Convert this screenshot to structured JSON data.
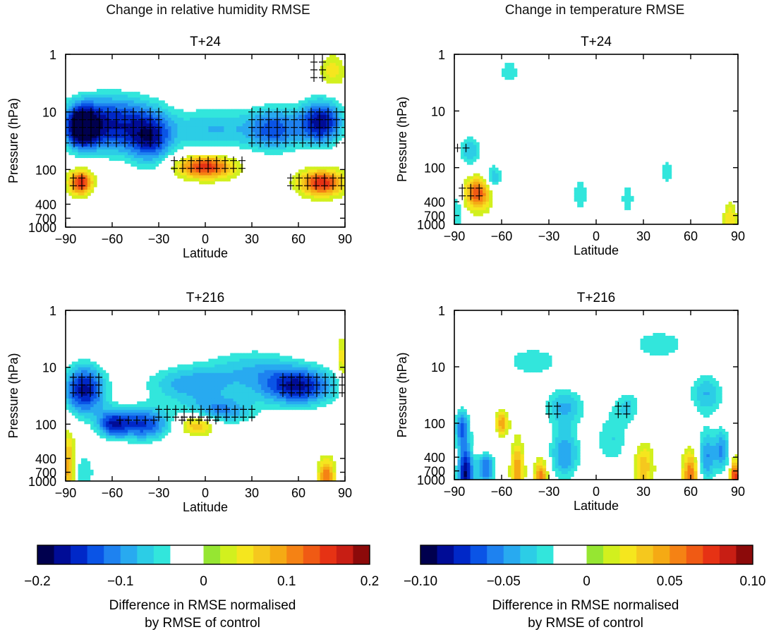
{
  "figure": {
    "left_column_title": "Change in relative humidity RMSE",
    "right_column_title": "Change in temperature RMSE"
  },
  "chart_data": [
    {
      "type": "heatmap",
      "id": "rh-t24",
      "title": "T+24",
      "xlabel": "Latitude",
      "ylabel": "Pressure (hPa)",
      "xlim": [
        -90,
        90
      ],
      "xticks": [
        -90,
        -60,
        -30,
        0,
        30,
        60,
        90
      ],
      "xtick_labels": [
        "−90",
        "−60",
        "−30",
        "0",
        "30",
        "60",
        "90"
      ],
      "yticks": [
        1,
        10,
        100,
        400,
        700,
        1000
      ],
      "yscale": "log-pressure",
      "scale_max": 0.2,
      "features": [
        {
          "lat": -62,
          "p": 20,
          "v": -0.14,
          "wlat": 28,
          "wp": 0.45
        },
        {
          "lat": -80,
          "p": 18,
          "v": -0.17,
          "wlat": 10,
          "wp": 0.35
        },
        {
          "lat": -35,
          "p": 30,
          "v": -0.12,
          "wlat": 14,
          "wp": 0.45
        },
        {
          "lat": 5,
          "p": 20,
          "v": -0.08,
          "wlat": 30,
          "wp": 0.4
        },
        {
          "lat": 45,
          "p": 20,
          "v": -0.12,
          "wlat": 18,
          "wp": 0.4
        },
        {
          "lat": 75,
          "p": 15,
          "v": -0.17,
          "wlat": 14,
          "wp": 0.4
        },
        {
          "lat": -60,
          "p": 8,
          "v": -0.05,
          "wlat": 30,
          "wp": 0.35
        },
        {
          "lat": 0,
          "p": 90,
          "v": 0.16,
          "wlat": 18,
          "wp": 0.2
        },
        {
          "lat": -80,
          "p": 170,
          "v": 0.17,
          "wlat": 8,
          "wp": 0.22
        },
        {
          "lat": 75,
          "p": 170,
          "v": 0.16,
          "wlat": 14,
          "wp": 0.22
        },
        {
          "lat": 82,
          "p": 2,
          "v": 0.05,
          "wlat": 8,
          "wp": 0.3
        },
        {
          "lat": -50,
          "p": 250,
          "v": -0.03,
          "wlat": 35,
          "wp": 0.35
        }
      ],
      "hatches": [
        {
          "lat": [
            -90,
            -30
          ],
          "p": [
            10,
            45
          ]
        },
        {
          "lat": [
            30,
            90
          ],
          "p": [
            10,
            45
          ]
        },
        {
          "lat": [
            -20,
            25
          ],
          "p": [
            70,
            110
          ]
        },
        {
          "lat": [
            -85,
            -75
          ],
          "p": [
            140,
            220
          ]
        },
        {
          "lat": [
            55,
            90
          ],
          "p": [
            140,
            220
          ]
        },
        {
          "lat": [
            70,
            80
          ],
          "p": [
            1,
            3
          ]
        }
      ]
    },
    {
      "type": "heatmap",
      "id": "t-t24",
      "title": "T+24",
      "xlabel": "Latitude",
      "ylabel": "Pressure (hPa)",
      "xlim": [
        -90,
        90
      ],
      "xticks": [
        -90,
        -60,
        -30,
        0,
        30,
        60,
        90
      ],
      "xtick_labels": [
        "−90",
        "−60",
        "−30",
        "0",
        "30",
        "60",
        "90"
      ],
      "yticks": [
        1,
        10,
        100,
        400,
        700,
        1000
      ],
      "yscale": "log-pressure",
      "scale_max": 0.1,
      "features": [
        {
          "lat": -75,
          "p": 280,
          "v": 0.07,
          "wlat": 8,
          "wp": 0.28
        },
        {
          "lat": -80,
          "p": 50,
          "v": -0.04,
          "wlat": 8,
          "wp": 0.3
        },
        {
          "lat": -65,
          "p": 150,
          "v": -0.04,
          "wlat": 6,
          "wp": 0.25
        },
        {
          "lat": -10,
          "p": 300,
          "v": -0.03,
          "wlat": 6,
          "wp": 0.35
        },
        {
          "lat": 20,
          "p": 350,
          "v": -0.03,
          "wlat": 5,
          "wp": 0.3
        },
        {
          "lat": 45,
          "p": 120,
          "v": -0.03,
          "wlat": 6,
          "wp": 0.25
        },
        {
          "lat": 85,
          "p": 800,
          "v": 0.03,
          "wlat": 4,
          "wp": 0.3
        },
        {
          "lat": -88,
          "p": 600,
          "v": -0.03,
          "wlat": 3,
          "wp": 0.5
        },
        {
          "lat": -55,
          "p": 2,
          "v": -0.025,
          "wlat": 10,
          "wp": 0.3
        }
      ],
      "hatches": [
        {
          "lat": [
            -85,
            -72
          ],
          "p": [
            230,
            320
          ]
        },
        {
          "lat": [
            -88,
            -78
          ],
          "p": [
            45,
            60
          ]
        }
      ]
    },
    {
      "type": "heatmap",
      "id": "rh-t216",
      "title": "T+216",
      "xlabel": "Latitude",
      "ylabel": "Pressure (hPa)",
      "xlim": [
        -90,
        90
      ],
      "xticks": [
        -90,
        -60,
        -30,
        0,
        30,
        60,
        90
      ],
      "xtick_labels": [
        "−90",
        "−60",
        "−30",
        "0",
        "30",
        "60",
        "90"
      ],
      "yticks": [
        1,
        10,
        100,
        400,
        700,
        1000
      ],
      "yscale": "log-pressure",
      "scale_max": 0.2,
      "features": [
        {
          "lat": -78,
          "p": 25,
          "v": -0.17,
          "wlat": 14,
          "wp": 0.45
        },
        {
          "lat": -40,
          "p": 100,
          "v": -0.14,
          "wlat": 18,
          "wp": 0.3
        },
        {
          "lat": -60,
          "p": 100,
          "v": -0.12,
          "wlat": 10,
          "wp": 0.25
        },
        {
          "lat": -10,
          "p": 20,
          "v": -0.09,
          "wlat": 30,
          "wp": 0.35
        },
        {
          "lat": 10,
          "p": 60,
          "v": -0.1,
          "wlat": 22,
          "wp": 0.25
        },
        {
          "lat": 60,
          "p": 22,
          "v": -0.16,
          "wlat": 25,
          "wp": 0.35
        },
        {
          "lat": 30,
          "p": 10,
          "v": -0.06,
          "wlat": 30,
          "wp": 0.4
        },
        {
          "lat": -5,
          "p": 100,
          "v": 0.1,
          "wlat": 12,
          "wp": 0.18
        },
        {
          "lat": -88,
          "p": 600,
          "v": 0.1,
          "wlat": 4,
          "wp": 0.6
        },
        {
          "lat": 78,
          "p": 850,
          "v": 0.12,
          "wlat": 5,
          "wp": 0.3
        },
        {
          "lat": -78,
          "p": 700,
          "v": -0.06,
          "wlat": 8,
          "wp": 0.4
        },
        {
          "lat": 88,
          "p": 8,
          "v": 0.06,
          "wlat": 3,
          "wp": 0.4
        }
      ],
      "hatches": [
        {
          "lat": [
            -85,
            -65
          ],
          "p": [
            15,
            35
          ]
        },
        {
          "lat": [
            -55,
            -30
          ],
          "p": [
            85,
            115
          ]
        },
        {
          "lat": [
            -30,
            30
          ],
          "p": [
            55,
            85
          ]
        },
        {
          "lat": [
            -15,
            10
          ],
          "p": [
            85,
            110
          ]
        },
        {
          "lat": [
            50,
            90
          ],
          "p": [
            15,
            35
          ]
        }
      ]
    },
    {
      "type": "heatmap",
      "id": "t-t216",
      "title": "T+216",
      "xlabel": "Latitude",
      "ylabel": "Pressure (hPa)",
      "xlim": [
        -90,
        90
      ],
      "xticks": [
        -90,
        -60,
        -30,
        0,
        30,
        60,
        90
      ],
      "xtick_labels": [
        "−90",
        "−60",
        "−30",
        "0",
        "30",
        "60",
        "90"
      ],
      "yticks": [
        1,
        10,
        100,
        400,
        700,
        1000
      ],
      "yscale": "log-pressure",
      "scale_max": 0.1,
      "features": [
        {
          "lat": -83,
          "p": 800,
          "v": -0.09,
          "wlat": 5,
          "wp": 0.5
        },
        {
          "lat": -70,
          "p": 500,
          "v": -0.06,
          "wlat": 6,
          "wp": 0.6
        },
        {
          "lat": -50,
          "p": 700,
          "v": 0.05,
          "wlat": 4,
          "wp": 0.5
        },
        {
          "lat": -35,
          "p": 900,
          "v": 0.06,
          "wlat": 4,
          "wp": 0.3
        },
        {
          "lat": -20,
          "p": 350,
          "v": -0.05,
          "wlat": 10,
          "wp": 0.5
        },
        {
          "lat": 10,
          "p": 200,
          "v": -0.03,
          "wlat": 12,
          "wp": 0.5
        },
        {
          "lat": 30,
          "p": 600,
          "v": 0.04,
          "wlat": 6,
          "wp": 0.4
        },
        {
          "lat": 60,
          "p": 800,
          "v": 0.06,
          "wlat": 5,
          "wp": 0.4
        },
        {
          "lat": 70,
          "p": 400,
          "v": -0.05,
          "wlat": 6,
          "wp": 0.5
        },
        {
          "lat": 80,
          "p": 300,
          "v": -0.05,
          "wlat": 5,
          "wp": 0.4
        },
        {
          "lat": 88,
          "p": 900,
          "v": 0.08,
          "wlat": 3,
          "wp": 0.3
        },
        {
          "lat": -60,
          "p": 100,
          "v": 0.05,
          "wlat": 4,
          "wp": 0.2
        },
        {
          "lat": -85,
          "p": 120,
          "v": -0.06,
          "wlat": 5,
          "wp": 0.35
        },
        {
          "lat": -70,
          "p": 250,
          "v": 0.05,
          "wlat": 6,
          "wp": 0.2
        },
        {
          "lat": -20,
          "p": 50,
          "v": -0.04,
          "wlat": 14,
          "wp": 0.35
        },
        {
          "lat": 20,
          "p": 50,
          "v": -0.03,
          "wlat": 10,
          "wp": 0.3
        },
        {
          "lat": -40,
          "p": 8,
          "v": -0.03,
          "wlat": 20,
          "wp": 0.3
        },
        {
          "lat": 40,
          "p": 4,
          "v": -0.03,
          "wlat": 20,
          "wp": 0.3
        },
        {
          "lat": 70,
          "p": 30,
          "v": -0.04,
          "wlat": 12,
          "wp": 0.4
        }
      ],
      "hatches": [
        {
          "lat": [
            -30,
            -20
          ],
          "p": [
            50,
            70
          ]
        },
        {
          "lat": [
            14,
            24
          ],
          "p": [
            50,
            70
          ]
        }
      ]
    }
  ],
  "colorbars": [
    {
      "id": "rh",
      "min": -0.2,
      "max": 0.2,
      "ticks": [
        -0.2,
        -0.1,
        0,
        0.1,
        0.2
      ],
      "tick_labels": [
        "−0.2",
        "−0.1",
        "0",
        "0.1",
        "0.2"
      ],
      "label_line1": "Difference in RMSE normalised",
      "label_line2": "by RMSE of control"
    },
    {
      "id": "t",
      "min": -0.1,
      "max": 0.1,
      "ticks": [
        -0.1,
        -0.05,
        0,
        0.05,
        0.1
      ],
      "tick_labels": [
        "−0.10",
        "−0.05",
        "0",
        "0.05",
        "0.10"
      ],
      "label_line1": "Difference in RMSE normalised",
      "label_line2": "by RMSE of control"
    }
  ],
  "palette": [
    "#00004e",
    "#000c96",
    "#0028c8",
    "#0a54e6",
    "#1e82f0",
    "#28aaf0",
    "#2ccde6",
    "#32e6dc",
    "#ffffff",
    "#ffffff",
    "#96e632",
    "#d2f01e",
    "#f5e61e",
    "#f5c81e",
    "#f5aa14",
    "#f58214",
    "#f05a14",
    "#e63214",
    "#c81e14",
    "#8c0a0a"
  ]
}
